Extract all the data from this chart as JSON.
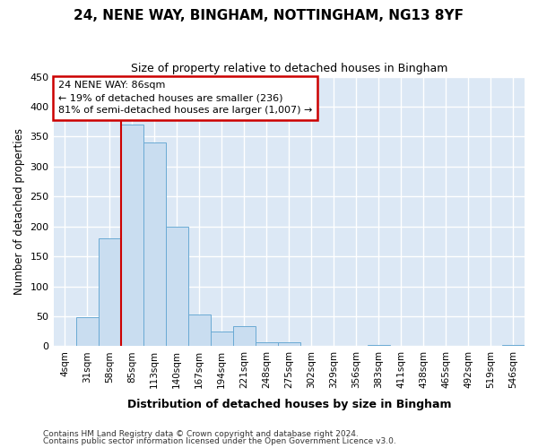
{
  "title": "24, NENE WAY, BINGHAM, NOTTINGHAM, NG13 8YF",
  "subtitle": "Size of property relative to detached houses in Bingham",
  "xlabel": "Distribution of detached houses by size in Bingham",
  "ylabel": "Number of detached properties",
  "bin_labels": [
    "4sqm",
    "31sqm",
    "58sqm",
    "85sqm",
    "113sqm",
    "140sqm",
    "167sqm",
    "194sqm",
    "221sqm",
    "248sqm",
    "275sqm",
    "302sqm",
    "329sqm",
    "356sqm",
    "383sqm",
    "411sqm",
    "438sqm",
    "465sqm",
    "492sqm",
    "519sqm",
    "546sqm"
  ],
  "bin_values": [
    0,
    48,
    180,
    370,
    340,
    200,
    53,
    25,
    33,
    6,
    6,
    0,
    0,
    0,
    2,
    0,
    0,
    0,
    0,
    0,
    2
  ],
  "bar_color": "#c9ddf0",
  "bar_edge_color": "#6aaad4",
  "plot_bg_color": "#dce8f5",
  "fig_bg_color": "#ffffff",
  "grid_color": "#ffffff",
  "vline_color": "#cc0000",
  "vline_x_index": 3,
  "ylim": [
    0,
    450
  ],
  "yticks": [
    0,
    50,
    100,
    150,
    200,
    250,
    300,
    350,
    400,
    450
  ],
  "annotation_title": "24 NENE WAY: 86sqm",
  "annotation_line1": "← 19% of detached houses are smaller (236)",
  "annotation_line2": "81% of semi-detached houses are larger (1,007) →",
  "annotation_box_edgecolor": "#cc0000",
  "footer_line1": "Contains HM Land Registry data © Crown copyright and database right 2024.",
  "footer_line2": "Contains public sector information licensed under the Open Government Licence v3.0."
}
